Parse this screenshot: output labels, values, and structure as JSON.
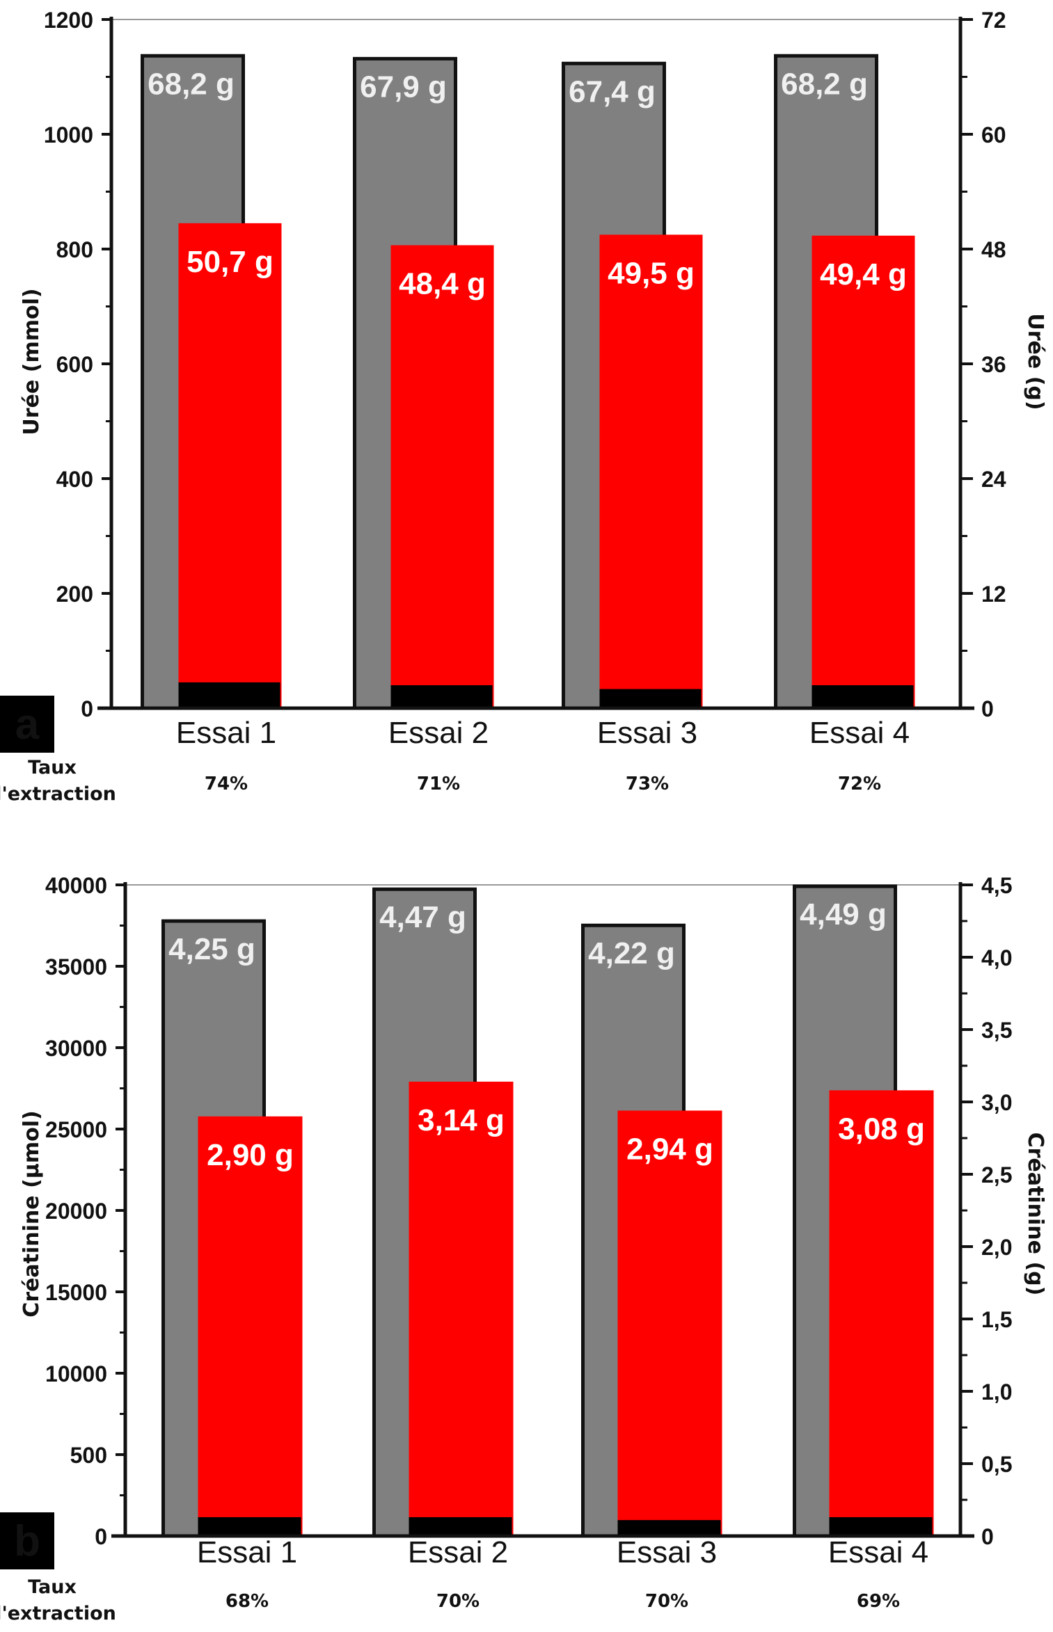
{
  "colors": {
    "gray_bar": "#808080",
    "red_bar": "#ff0000",
    "black_base": "#000000",
    "gray_label": "#f0f0f0",
    "red_label": "#ffffff"
  },
  "chart_data": [
    {
      "type": "bar",
      "panel_label": "a",
      "categories": [
        "Essai 1",
        "Essai 2",
        "Essai 3",
        "Essai 4"
      ],
      "rate_title": [
        "Taux",
        "d'extraction"
      ],
      "rates": [
        "74%",
        "71%",
        "73%",
        "72%"
      ],
      "left_axis": {
        "label": "Urée (mmol)",
        "min": 0,
        "max": 1200,
        "ticks": [
          "0",
          "200",
          "400",
          "600",
          "800",
          "1000",
          "1200"
        ]
      },
      "right_axis": {
        "label": "Urée (g)",
        "min": 0,
        "max": 72,
        "ticks": [
          "0",
          "12",
          "24",
          "36",
          "48",
          "60",
          "72"
        ]
      },
      "series": [
        {
          "values_g": [
            68.2,
            67.9,
            67.4,
            68.2
          ],
          "labels": [
            "68,2 g",
            "67,9 g",
            "67,4 g",
            "68,2 g"
          ]
        },
        {
          "values_g": [
            50.7,
            48.4,
            49.5,
            49.4
          ],
          "labels": [
            "50,7 g",
            "48,4 g",
            "49,5 g",
            "49,4 g"
          ]
        },
        {
          "values_g": [
            2.7,
            2.4,
            2.0,
            2.4
          ]
        }
      ],
      "grid": false
    },
    {
      "type": "bar",
      "panel_label": "b",
      "categories": [
        "Essai 1",
        "Essai 2",
        "Essai 3",
        "Essai 4"
      ],
      "rate_title": [
        "Taux",
        "d'extraction"
      ],
      "rates": [
        "68%",
        "70%",
        "70%",
        "69%"
      ],
      "left_axis": {
        "label": "Créatinine (µmol)",
        "min": 0,
        "max": 40000,
        "ticks": [
          "0",
          "500",
          "10000",
          "15000",
          "20000",
          "25000",
          "30000",
          "35000",
          "40000"
        ]
      },
      "right_axis": {
        "label": "Créatinine (g)",
        "min": 0,
        "max": 4.5,
        "ticks": [
          "0",
          "0,5",
          "1,0",
          "1,5",
          "2,0",
          "2,5",
          "3,0",
          "3,5",
          "4,0",
          "4,5"
        ]
      },
      "series": [
        {
          "values_g": [
            4.25,
            4.47,
            4.22,
            4.49
          ],
          "labels": [
            "4,25 g",
            "4,47 g",
            "4,22 g",
            "4,49 g"
          ]
        },
        {
          "values_g": [
            2.9,
            3.14,
            2.94,
            3.08
          ],
          "labels": [
            "2,90 g",
            "3,14 g",
            "2,94 g",
            "3,08 g"
          ]
        },
        {
          "values_g": [
            0.13,
            0.13,
            0.11,
            0.13
          ]
        }
      ],
      "grid": false
    }
  ]
}
